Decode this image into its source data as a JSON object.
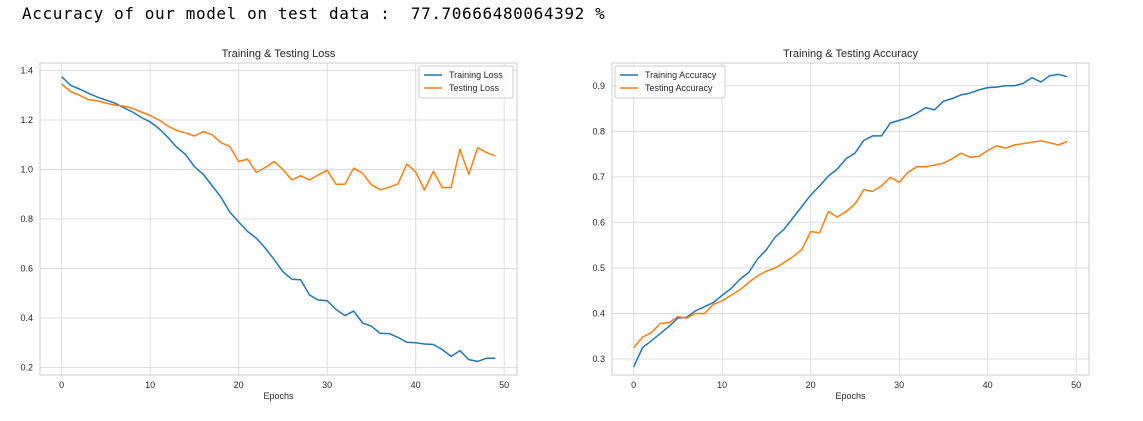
{
  "header": {
    "label": "Accuracy of our model on test data :",
    "value": "77.70666480064392",
    "unit": "%"
  },
  "colors": {
    "series1": "#1f77b4",
    "series2": "#ff7f0e",
    "grid": "#dddddd",
    "frame": "#cccccc"
  },
  "chart_data": [
    {
      "type": "line",
      "title": "Training & Testing Loss",
      "xlabel": "Epochs",
      "ylabel": "",
      "xlim": [
        -2.45,
        51.45
      ],
      "ylim": [
        0.17,
        1.43
      ],
      "xticks": [
        0,
        10,
        20,
        30,
        40,
        50
      ],
      "yticks": [
        0.2,
        0.4,
        0.6,
        0.8,
        1.0,
        1.2,
        1.4
      ],
      "ytick_labels": [
        "0.2",
        "0.4",
        "0.6",
        "0.8",
        "1.0",
        "1.2",
        "1.4"
      ],
      "grid": true,
      "legend": "top-right",
      "series": [
        {
          "name": "Training Loss",
          "color": "#1f77b4",
          "x": [
            0,
            1,
            2,
            3,
            4,
            5,
            6,
            7,
            8,
            9,
            10,
            11,
            12,
            13,
            14,
            15,
            16,
            17,
            18,
            19,
            20,
            21,
            22,
            23,
            24,
            25,
            26,
            27,
            28,
            29,
            30,
            31,
            32,
            33,
            34,
            35,
            36,
            37,
            38,
            39,
            40,
            41,
            42,
            43,
            44,
            45,
            46,
            47,
            48,
            49
          ],
          "values": [
            1.375,
            1.34,
            1.325,
            1.308,
            1.293,
            1.28,
            1.268,
            1.25,
            1.232,
            1.21,
            1.192,
            1.165,
            1.13,
            1.09,
            1.06,
            1.012,
            0.98,
            0.935,
            0.888,
            0.828,
            0.788,
            0.75,
            0.722,
            0.683,
            0.637,
            0.587,
            0.557,
            0.555,
            0.493,
            0.473,
            0.47,
            0.435,
            0.41,
            0.428,
            0.38,
            0.367,
            0.338,
            0.337,
            0.322,
            0.302,
            0.3,
            0.295,
            0.293,
            0.273,
            0.245,
            0.268,
            0.232,
            0.225,
            0.238,
            0.238
          ]
        },
        {
          "name": "Testing Loss",
          "color": "#ff7f0e",
          "x": [
            0,
            1,
            2,
            3,
            4,
            5,
            6,
            7,
            8,
            9,
            10,
            11,
            12,
            13,
            14,
            15,
            16,
            17,
            18,
            19,
            20,
            21,
            22,
            23,
            24,
            25,
            26,
            27,
            28,
            29,
            30,
            31,
            32,
            33,
            34,
            35,
            36,
            37,
            38,
            39,
            40,
            41,
            42,
            43,
            44,
            45,
            46,
            47,
            48,
            49
          ],
          "values": [
            1.345,
            1.315,
            1.3,
            1.282,
            1.278,
            1.268,
            1.26,
            1.256,
            1.247,
            1.232,
            1.218,
            1.2,
            1.175,
            1.158,
            1.148,
            1.135,
            1.153,
            1.14,
            1.108,
            1.093,
            1.032,
            1.042,
            0.988,
            1.008,
            1.032,
            1.0,
            0.958,
            0.975,
            0.958,
            0.978,
            0.997,
            0.94,
            0.94,
            1.005,
            0.985,
            0.938,
            0.918,
            0.928,
            0.942,
            1.022,
            0.99,
            0.917,
            0.993,
            0.927,
            0.927,
            1.082,
            0.98,
            1.088,
            1.068,
            1.055
          ]
        }
      ]
    },
    {
      "type": "line",
      "title": "Training & Testing Accuracy",
      "xlabel": "Epochs",
      "ylabel": "",
      "xlim": [
        -2.45,
        51.45
      ],
      "ylim": [
        0.265,
        0.95
      ],
      "xticks": [
        0,
        10,
        20,
        30,
        40,
        50
      ],
      "yticks": [
        0.3,
        0.4,
        0.5,
        0.6,
        0.7,
        0.8,
        0.9
      ],
      "ytick_labels": [
        "0.3",
        "0.4",
        "0.5",
        "0.6",
        "0.7",
        "0.8",
        "0.9"
      ],
      "grid": true,
      "legend": "top-left",
      "series": [
        {
          "name": "Training Accuracy",
          "color": "#1f77b4",
          "x": [
            0,
            1,
            2,
            3,
            4,
            5,
            6,
            7,
            8,
            9,
            10,
            11,
            12,
            13,
            14,
            15,
            16,
            17,
            18,
            19,
            20,
            21,
            22,
            23,
            24,
            25,
            26,
            27,
            28,
            29,
            30,
            31,
            32,
            33,
            34,
            35,
            36,
            37,
            38,
            39,
            40,
            41,
            42,
            43,
            44,
            45,
            46,
            47,
            48,
            49
          ],
          "values": [
            0.283,
            0.325,
            0.34,
            0.356,
            0.372,
            0.39,
            0.392,
            0.406,
            0.415,
            0.424,
            0.44,
            0.455,
            0.475,
            0.49,
            0.52,
            0.54,
            0.568,
            0.585,
            0.61,
            0.635,
            0.66,
            0.68,
            0.702,
            0.717,
            0.74,
            0.752,
            0.78,
            0.79,
            0.79,
            0.818,
            0.824,
            0.83,
            0.84,
            0.852,
            0.847,
            0.866,
            0.872,
            0.88,
            0.884,
            0.891,
            0.896,
            0.897,
            0.9,
            0.9,
            0.905,
            0.918,
            0.908,
            0.922,
            0.925,
            0.92
          ]
        },
        {
          "name": "Testing Accuracy",
          "color": "#ff7f0e",
          "x": [
            0,
            1,
            2,
            3,
            4,
            5,
            6,
            7,
            8,
            9,
            10,
            11,
            12,
            13,
            14,
            15,
            16,
            17,
            18,
            19,
            20,
            21,
            22,
            23,
            24,
            25,
            26,
            27,
            28,
            29,
            30,
            31,
            32,
            33,
            34,
            35,
            36,
            37,
            38,
            39,
            40,
            41,
            42,
            43,
            44,
            45,
            46,
            47,
            48,
            49
          ],
          "values": [
            0.325,
            0.348,
            0.358,
            0.378,
            0.38,
            0.393,
            0.39,
            0.4,
            0.4,
            0.42,
            0.428,
            0.44,
            0.452,
            0.468,
            0.483,
            0.493,
            0.5,
            0.512,
            0.525,
            0.54,
            0.58,
            0.577,
            0.624,
            0.612,
            0.624,
            0.64,
            0.672,
            0.668,
            0.68,
            0.699,
            0.688,
            0.71,
            0.722,
            0.722,
            0.726,
            0.73,
            0.74,
            0.752,
            0.743,
            0.745,
            0.758,
            0.768,
            0.763,
            0.77,
            0.773,
            0.776,
            0.779,
            0.775,
            0.77,
            0.778
          ]
        }
      ]
    }
  ]
}
